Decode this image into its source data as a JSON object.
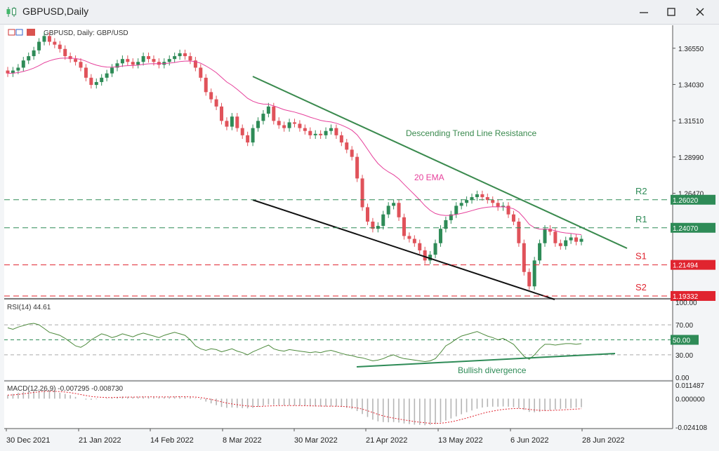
{
  "window": {
    "title": "GBPUSD,Daily"
  },
  "chart_data": {
    "type": "candlestick",
    "title": "GBPUSD, Daily:  GBP/USD",
    "ylim": [
      1.1933,
      1.3805
    ],
    "y_ticks": [
      "1.36550",
      "1.34030",
      "1.31510",
      "1.28990",
      "1.26470"
    ],
    "x_ticks": [
      "30 Dec 2021",
      "21 Jan 2022",
      "14 Feb 2022",
      "8 Mar 2022",
      "30 Mar 2022",
      "21 Apr 2022",
      "13 May 2022",
      "6 Jun 2022",
      "28 Jun 2022"
    ],
    "levels": [
      {
        "name": "R2",
        "value": 1.2602,
        "label": "1.26020",
        "color": "#2e8b57"
      },
      {
        "name": "R1",
        "value": 1.2407,
        "label": "1.24070",
        "color": "#2e8b57"
      },
      {
        "name": "S1",
        "value": 1.21494,
        "label": "1.21494",
        "color": "#e0242f"
      },
      {
        "name": "S2",
        "value": 1.19332,
        "label": "1.19332",
        "color": "#e0242f"
      }
    ],
    "annotations": {
      "resistance": "Descending Trend Line Resistance",
      "ema": "20 EMA",
      "divergence": "Bullish divergence"
    },
    "bull_color": "#2e8b57",
    "bear_color": "#e0525a",
    "ema_color": "#e6409b",
    "rsi": {
      "label": "RSI(14) 44.61",
      "levels": [
        "100.00",
        "70.00",
        "50.00",
        "30.00",
        "0.00"
      ],
      "value": 44.61
    },
    "macd": {
      "label": "MACD(12,26,9) -0.007295 -0.008730",
      "levels": [
        "0.011487",
        "0.000000",
        "-0.024108"
      ],
      "main": -0.007295,
      "signal": -0.00873
    },
    "closes": [
      1.348,
      1.35,
      1.352,
      1.357,
      1.36,
      1.364,
      1.37,
      1.374,
      1.37,
      1.368,
      1.365,
      1.36,
      1.358,
      1.356,
      1.352,
      1.345,
      1.34,
      1.342,
      1.345,
      1.348,
      1.352,
      1.355,
      1.358,
      1.356,
      1.354,
      1.356,
      1.36,
      1.358,
      1.356,
      1.354,
      1.356,
      1.358,
      1.36,
      1.362,
      1.36,
      1.357,
      1.352,
      1.345,
      1.335,
      1.33,
      1.325,
      1.315,
      1.311,
      1.318,
      1.31,
      1.305,
      1.3,
      1.31,
      1.315,
      1.32,
      1.325,
      1.315,
      1.312,
      1.31,
      1.314,
      1.313,
      1.31,
      1.308,
      1.305,
      1.306,
      1.305,
      1.308,
      1.31,
      1.305,
      1.3,
      1.295,
      1.29,
      1.275,
      1.255,
      1.245,
      1.24,
      1.242,
      1.25,
      1.256,
      1.258,
      1.248,
      1.235,
      1.233,
      1.23,
      1.225,
      1.218,
      1.222,
      1.23,
      1.24,
      1.246,
      1.25,
      1.256,
      1.258,
      1.26,
      1.262,
      1.264,
      1.262,
      1.26,
      1.258,
      1.255,
      1.256,
      1.25,
      1.245,
      1.23,
      1.21,
      1.2,
      1.218,
      1.23,
      1.24,
      1.238,
      1.23,
      1.228,
      1.232,
      1.234,
      1.231,
      1.233
    ],
    "rsi_values": [
      66,
      64,
      67,
      69,
      71,
      72,
      70,
      65,
      60,
      58,
      56,
      52,
      47,
      42,
      40,
      44,
      50,
      54,
      58,
      56,
      53,
      55,
      58,
      56,
      54,
      57,
      59,
      57,
      55,
      53,
      56,
      58,
      60,
      58,
      56,
      50,
      42,
      38,
      36,
      38,
      37,
      34,
      36,
      38,
      35,
      33,
      30,
      34,
      37,
      40,
      43,
      38,
      36,
      35,
      37,
      36,
      35,
      34,
      33,
      34,
      33,
      35,
      36,
      34,
      32,
      30,
      29,
      27,
      26,
      24,
      22,
      23,
      25,
      28,
      30,
      27,
      25,
      24,
      23,
      22,
      21,
      22,
      25,
      33,
      42,
      46,
      51,
      55,
      57,
      59,
      61,
      58,
      55,
      53,
      50,
      52,
      48,
      44,
      36,
      28,
      24,
      30,
      38,
      44,
      44,
      43,
      44,
      45,
      45,
      44,
      45
    ],
    "macd_values": [
      0.003,
      0.004,
      0.005,
      0.006,
      0.007,
      0.0078,
      0.008,
      0.0075,
      0.0068,
      0.006,
      0.005,
      0.004,
      0.003,
      0.0015,
      0.0,
      -0.0008,
      -0.001,
      -0.0005,
      0.0,
      0.0005,
      0.001,
      0.0015,
      0.0018,
      0.0016,
      0.0014,
      0.0016,
      0.0018,
      0.0017,
      0.0015,
      0.0013,
      0.0014,
      0.0016,
      0.0018,
      0.0019,
      0.0017,
      0.0012,
      0.0004,
      -0.0008,
      -0.0025,
      -0.004,
      -0.0055,
      -0.007,
      -0.0078,
      -0.0075,
      -0.0078,
      -0.008,
      -0.0082,
      -0.0078,
      -0.007,
      -0.006,
      -0.005,
      -0.0052,
      -0.0055,
      -0.0058,
      -0.0058,
      -0.0059,
      -0.006,
      -0.0062,
      -0.0065,
      -0.0066,
      -0.0067,
      -0.0066,
      -0.0065,
      -0.0067,
      -0.007,
      -0.0078,
      -0.0088,
      -0.0105,
      -0.013,
      -0.0155,
      -0.0178,
      -0.0192,
      -0.0198,
      -0.02,
      -0.0198,
      -0.0202,
      -0.021,
      -0.0215,
      -0.022,
      -0.0222,
      -0.0225,
      -0.0222,
      -0.0215,
      -0.0202,
      -0.0185,
      -0.0168,
      -0.015,
      -0.0132,
      -0.0115,
      -0.01,
      -0.0085,
      -0.0075,
      -0.007,
      -0.0068,
      -0.0068,
      -0.0066,
      -0.0068,
      -0.0072,
      -0.008,
      -0.0095,
      -0.0112,
      -0.0115,
      -0.0112,
      -0.0105,
      -0.0098,
      -0.0092,
      -0.0088,
      -0.0083,
      -0.008,
      -0.0076,
      -0.0073
    ]
  }
}
